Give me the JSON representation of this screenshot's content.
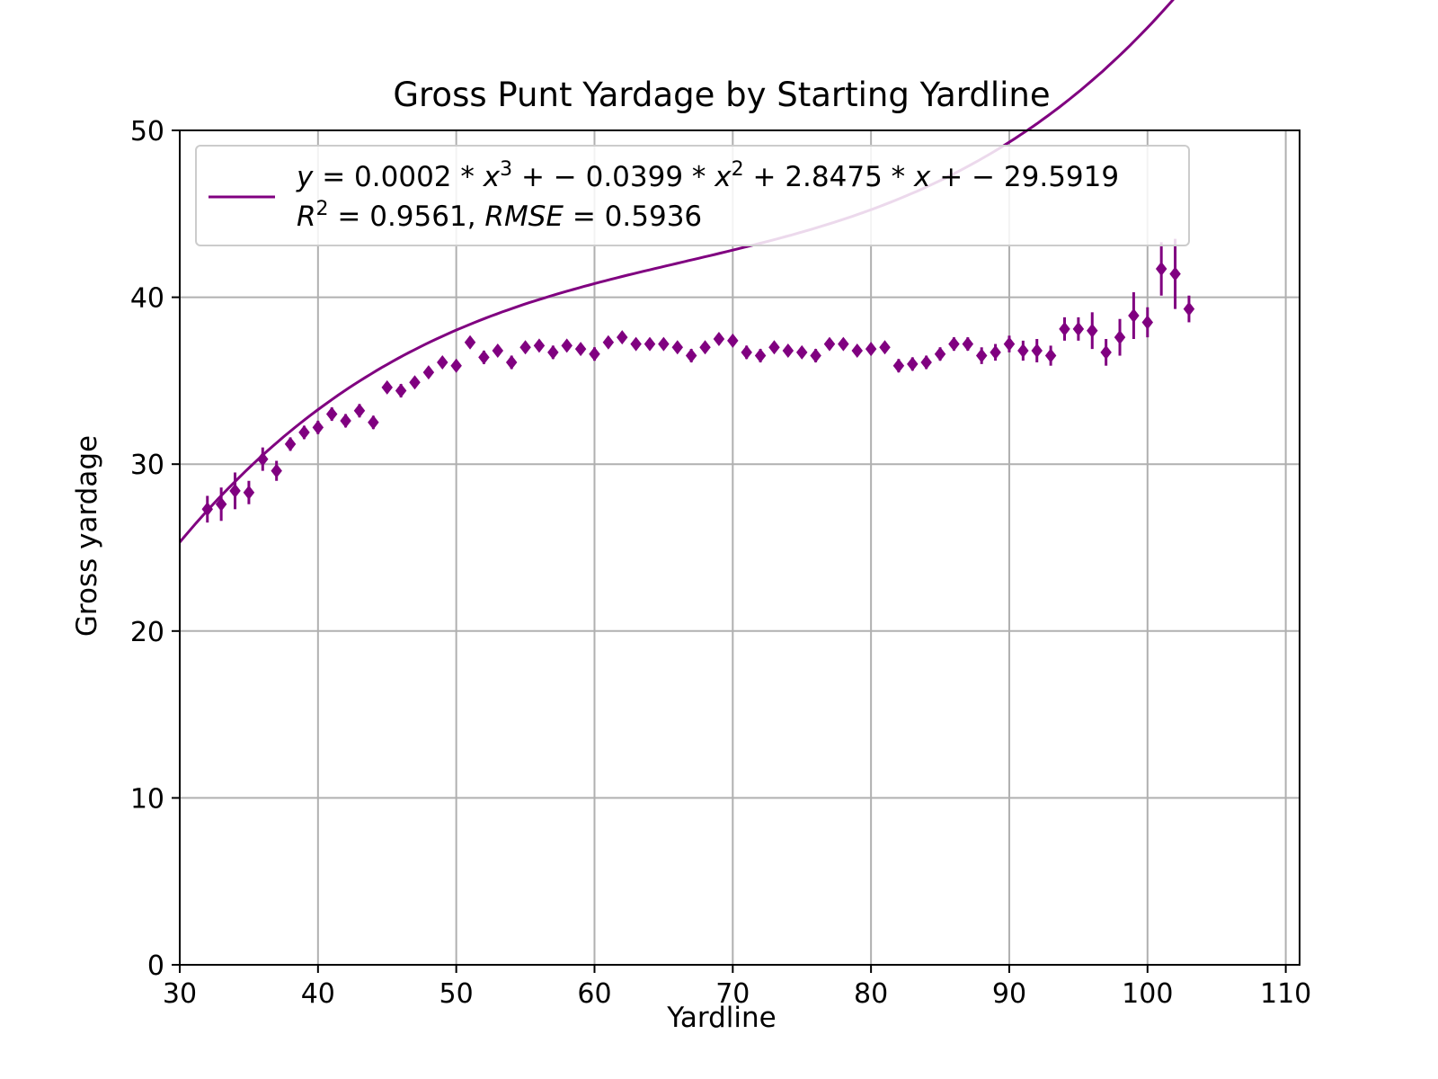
{
  "chart_data": {
    "type": "scatter",
    "title": "Gross Punt Yardage by Starting Yardline",
    "xlabel": "Yardline",
    "ylabel": "Gross yardage",
    "xlim": [
      30,
      111
    ],
    "ylim": [
      0,
      50
    ],
    "xticks": [
      "30",
      "40",
      "50",
      "60",
      "70",
      "80",
      "90",
      "100",
      "110"
    ],
    "yticks": [
      "0",
      "10",
      "20",
      "30",
      "40",
      "50"
    ],
    "grid": true,
    "legend_placement": "upper-left",
    "legend": {
      "line1": "y = 0.0002 * x^3 + -0.0399 * x^2 + 2.8475 * x + -29.5919",
      "line2": "R^2 = 0.9561, RMSE = 0.5936"
    },
    "color": "#800080",
    "fit": {
      "coefficients": [
        0.0002,
        -0.0399,
        2.8475,
        -29.5919
      ],
      "x_range": [
        30,
        109
      ]
    },
    "series": [
      {
        "marker": "diamond",
        "x": [
          32,
          33,
          34,
          35,
          36,
          37,
          38,
          39,
          40,
          41,
          42,
          43,
          44,
          45,
          46,
          47,
          48,
          49,
          50,
          51,
          52,
          53,
          54,
          55,
          56,
          57,
          58,
          59,
          60,
          61,
          62,
          63,
          64,
          65,
          66,
          67,
          68,
          69,
          70,
          71,
          72,
          73,
          74,
          75,
          76,
          77,
          78,
          79,
          80,
          81,
          82,
          83,
          84,
          85,
          86,
          87,
          88,
          89,
          90,
          91,
          92,
          93,
          94,
          95,
          96,
          97,
          98,
          99,
          100,
          101,
          102,
          103
        ],
        "y": [
          27.3,
          27.6,
          28.4,
          28.3,
          30.3,
          29.6,
          31.2,
          31.9,
          32.2,
          33.0,
          32.6,
          33.2,
          32.5,
          34.6,
          34.4,
          34.9,
          35.5,
          36.1,
          35.9,
          37.3,
          36.4,
          36.8,
          36.1,
          37.0,
          37.1,
          36.7,
          37.1,
          36.9,
          36.6,
          37.3,
          37.6,
          37.2,
          37.2,
          37.2,
          37.0,
          36.5,
          37.0,
          37.5,
          37.4,
          36.7,
          36.5,
          37.0,
          36.8,
          36.7,
          36.5,
          37.2,
          37.2,
          36.8,
          36.9,
          37.0,
          35.9,
          36.0,
          36.1,
          36.6,
          37.2,
          37.2,
          36.5,
          36.7,
          37.2,
          36.8,
          36.8,
          36.5,
          38.1,
          38.1,
          38.0,
          36.7,
          37.6,
          38.9,
          38.5,
          41.7,
          41.4,
          39.3
        ],
        "err": [
          0.8,
          1.0,
          1.1,
          0.7,
          0.7,
          0.6,
          0.4,
          0.4,
          0.4,
          0.4,
          0.4,
          0.4,
          0.4,
          0.3,
          0.4,
          0.3,
          0.3,
          0.3,
          0.3,
          0.3,
          0.4,
          0.3,
          0.4,
          0.3,
          0.3,
          0.4,
          0.3,
          0.3,
          0.4,
          0.3,
          0.3,
          0.3,
          0.3,
          0.3,
          0.3,
          0.4,
          0.3,
          0.3,
          0.3,
          0.4,
          0.4,
          0.3,
          0.3,
          0.3,
          0.4,
          0.3,
          0.3,
          0.3,
          0.3,
          0.3,
          0.4,
          0.4,
          0.4,
          0.4,
          0.4,
          0.4,
          0.5,
          0.5,
          0.5,
          0.6,
          0.7,
          0.6,
          0.7,
          0.7,
          1.1,
          0.8,
          1.1,
          1.4,
          0.9,
          1.6,
          2.1,
          0.8
        ]
      }
    ]
  }
}
